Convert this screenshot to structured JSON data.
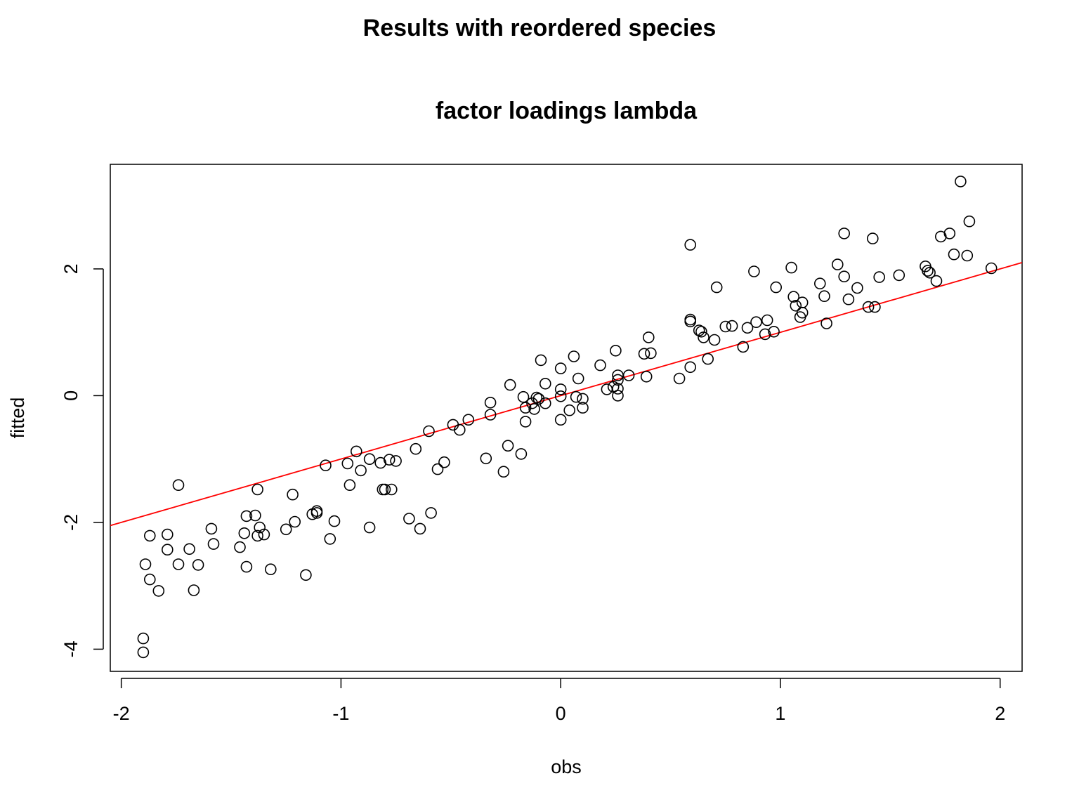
{
  "page_title": "Results with reordered species",
  "chart_data": {
    "type": "scatter",
    "title": "factor loadings lambda",
    "xlabel": "obs",
    "ylabel": "fitted",
    "xlim": [
      -2.05,
      2.1
    ],
    "ylim": [
      -4.35,
      3.65
    ],
    "x_ticks": [
      -2,
      -1,
      0,
      1,
      2
    ],
    "y_ticks": [
      -4,
      -2,
      0,
      2
    ],
    "grid": false,
    "legend": "none",
    "point_color": "#000000",
    "fit_line": {
      "color": "#ff0000",
      "intercept": 0.0,
      "slope": 1.0
    },
    "points": [
      [
        -1.9,
        -4.05
      ],
      [
        -1.9,
        -3.83
      ],
      [
        -1.89,
        -2.66
      ],
      [
        -1.87,
        -2.9
      ],
      [
        -1.87,
        -2.21
      ],
      [
        -1.83,
        -3.08
      ],
      [
        -1.79,
        -2.43
      ],
      [
        -1.79,
        -2.19
      ],
      [
        -1.74,
        -2.66
      ],
      [
        -1.74,
        -1.41
      ],
      [
        -1.69,
        -2.42
      ],
      [
        -1.67,
        -3.07
      ],
      [
        -1.65,
        -2.67
      ],
      [
        -1.59,
        -2.1
      ],
      [
        -1.58,
        -2.34
      ],
      [
        -1.46,
        -2.39
      ],
      [
        -1.44,
        -2.17
      ],
      [
        -1.43,
        -1.9
      ],
      [
        -1.43,
        -2.7
      ],
      [
        -1.39,
        -1.89
      ],
      [
        -1.38,
        -2.21
      ],
      [
        -1.37,
        -2.08
      ],
      [
        -1.35,
        -2.19
      ],
      [
        -1.38,
        -1.48
      ],
      [
        -1.32,
        -2.74
      ],
      [
        -1.25,
        -2.11
      ],
      [
        -1.22,
        -1.56
      ],
      [
        -1.21,
        -1.99
      ],
      [
        -1.16,
        -2.83
      ],
      [
        -1.13,
        -1.87
      ],
      [
        -1.11,
        -1.85
      ],
      [
        -1.11,
        -1.82
      ],
      [
        -1.07,
        -1.1
      ],
      [
        -1.05,
        -2.26
      ],
      [
        -1.03,
        -1.98
      ],
      [
        -0.97,
        -1.07
      ],
      [
        -0.96,
        -1.41
      ],
      [
        -0.93,
        -0.88
      ],
      [
        -0.91,
        -1.18
      ],
      [
        -0.87,
        -2.08
      ],
      [
        -0.87,
        -1.0
      ],
      [
        -0.82,
        -1.06
      ],
      [
        -0.81,
        -1.48
      ],
      [
        -0.8,
        -1.48
      ],
      [
        -0.78,
        -1.01
      ],
      [
        -0.77,
        -1.48
      ],
      [
        -0.75,
        -1.03
      ],
      [
        -0.69,
        -1.94
      ],
      [
        -0.66,
        -0.84
      ],
      [
        -0.64,
        -2.1
      ],
      [
        -0.6,
        -0.56
      ],
      [
        -0.59,
        -1.85
      ],
      [
        -0.56,
        -1.16
      ],
      [
        -0.53,
        -1.05
      ],
      [
        -0.49,
        -0.46
      ],
      [
        -0.46,
        -0.54
      ],
      [
        -0.42,
        -0.38
      ],
      [
        -0.34,
        -0.99
      ],
      [
        -0.32,
        -0.11
      ],
      [
        -0.32,
        -0.3
      ],
      [
        -0.26,
        -1.2
      ],
      [
        -0.24,
        -0.79
      ],
      [
        -0.23,
        0.17
      ],
      [
        -0.18,
        -0.92
      ],
      [
        -0.17,
        -0.02
      ],
      [
        -0.16,
        -0.41
      ],
      [
        -0.16,
        -0.19
      ],
      [
        -0.13,
        -0.12
      ],
      [
        -0.12,
        -0.21
      ],
      [
        -0.11,
        -0.03
      ],
      [
        -0.1,
        -0.05
      ],
      [
        -0.09,
        0.56
      ],
      [
        -0.07,
        -0.12
      ],
      [
        -0.07,
        0.19
      ],
      [
        0.0,
        -0.01
      ],
      [
        0.0,
        0.1
      ],
      [
        0.0,
        0.43
      ],
      [
        0.0,
        -0.38
      ],
      [
        0.04,
        -0.23
      ],
      [
        0.06,
        0.62
      ],
      [
        0.07,
        -0.02
      ],
      [
        0.08,
        0.27
      ],
      [
        0.1,
        -0.05
      ],
      [
        0.1,
        -0.19
      ],
      [
        0.18,
        0.48
      ],
      [
        0.21,
        0.1
      ],
      [
        0.24,
        0.14
      ],
      [
        0.25,
        0.71
      ],
      [
        0.26,
        0.32
      ],
      [
        0.26,
        0.25
      ],
      [
        0.26,
        0.11
      ],
      [
        0.26,
        0.0
      ],
      [
        0.31,
        0.32
      ],
      [
        0.38,
        0.66
      ],
      [
        0.39,
        0.3
      ],
      [
        0.4,
        0.92
      ],
      [
        0.41,
        0.67
      ],
      [
        0.54,
        0.27
      ],
      [
        0.59,
        2.38
      ],
      [
        0.59,
        1.2
      ],
      [
        0.59,
        1.17
      ],
      [
        0.59,
        0.45
      ],
      [
        0.63,
        1.03
      ],
      [
        0.64,
        1.01
      ],
      [
        0.65,
        0.92
      ],
      [
        0.67,
        0.58
      ],
      [
        0.7,
        0.88
      ],
      [
        0.71,
        1.71
      ],
      [
        0.75,
        1.09
      ],
      [
        0.78,
        1.1
      ],
      [
        0.83,
        0.77
      ],
      [
        0.85,
        1.07
      ],
      [
        0.88,
        1.96
      ],
      [
        0.89,
        1.16
      ],
      [
        0.93,
        0.97
      ],
      [
        0.94,
        1.19
      ],
      [
        0.97,
        1.01
      ],
      [
        0.98,
        1.71
      ],
      [
        1.05,
        2.02
      ],
      [
        1.06,
        1.56
      ],
      [
        1.07,
        1.42
      ],
      [
        1.09,
        1.24
      ],
      [
        1.1,
        1.47
      ],
      [
        1.1,
        1.31
      ],
      [
        1.18,
        1.77
      ],
      [
        1.2,
        1.57
      ],
      [
        1.21,
        1.14
      ],
      [
        1.26,
        2.07
      ],
      [
        1.29,
        1.88
      ],
      [
        1.29,
        2.56
      ],
      [
        1.31,
        1.52
      ],
      [
        1.35,
        1.7
      ],
      [
        1.4,
        1.4
      ],
      [
        1.42,
        2.48
      ],
      [
        1.43,
        1.4
      ],
      [
        1.45,
        1.87
      ],
      [
        1.54,
        1.9
      ],
      [
        1.66,
        2.04
      ],
      [
        1.67,
        1.97
      ],
      [
        1.68,
        1.94
      ],
      [
        1.71,
        1.81
      ],
      [
        1.73,
        2.51
      ],
      [
        1.77,
        2.56
      ],
      [
        1.79,
        2.23
      ],
      [
        1.82,
        3.38
      ],
      [
        1.85,
        2.21
      ],
      [
        1.86,
        2.75
      ],
      [
        1.96,
        2.01
      ]
    ]
  }
}
